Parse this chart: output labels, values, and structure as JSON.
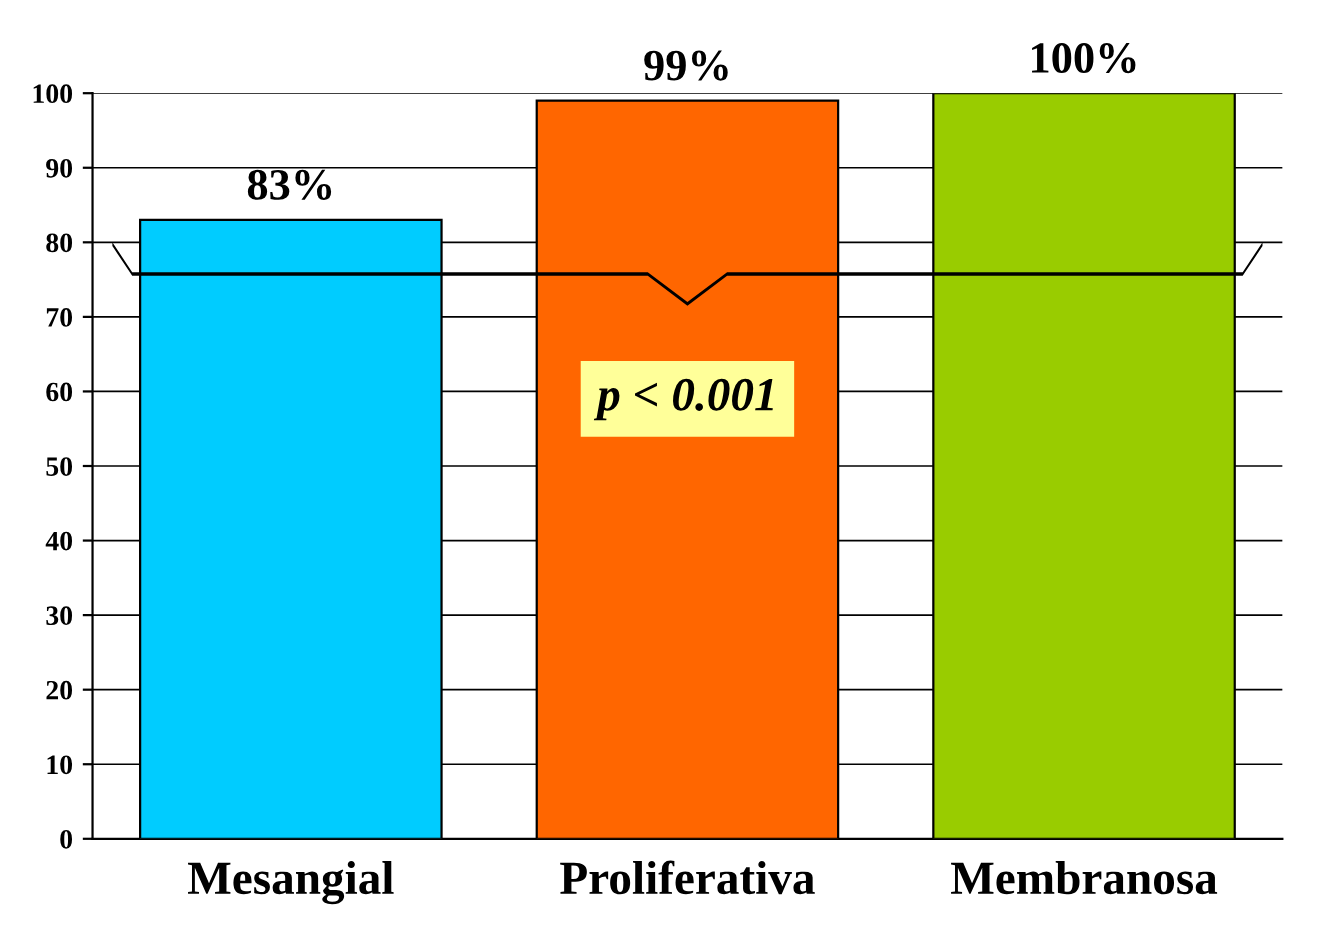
{
  "chart_data": {
    "type": "bar",
    "categories": [
      "Mesangial",
      "Proliferativa",
      "Membranosa"
    ],
    "values": [
      83,
      99,
      100
    ],
    "colors": [
      "#00ccff",
      "#ff6600",
      "#99cc00"
    ],
    "value_labels": [
      "83%",
      "99%",
      "100%"
    ],
    "ylim": [
      0,
      100
    ],
    "yticks": [
      0,
      10,
      20,
      30,
      40,
      50,
      60,
      70,
      80,
      90,
      100
    ],
    "grid": "y",
    "annotations": [
      "p < 0.001"
    ]
  }
}
